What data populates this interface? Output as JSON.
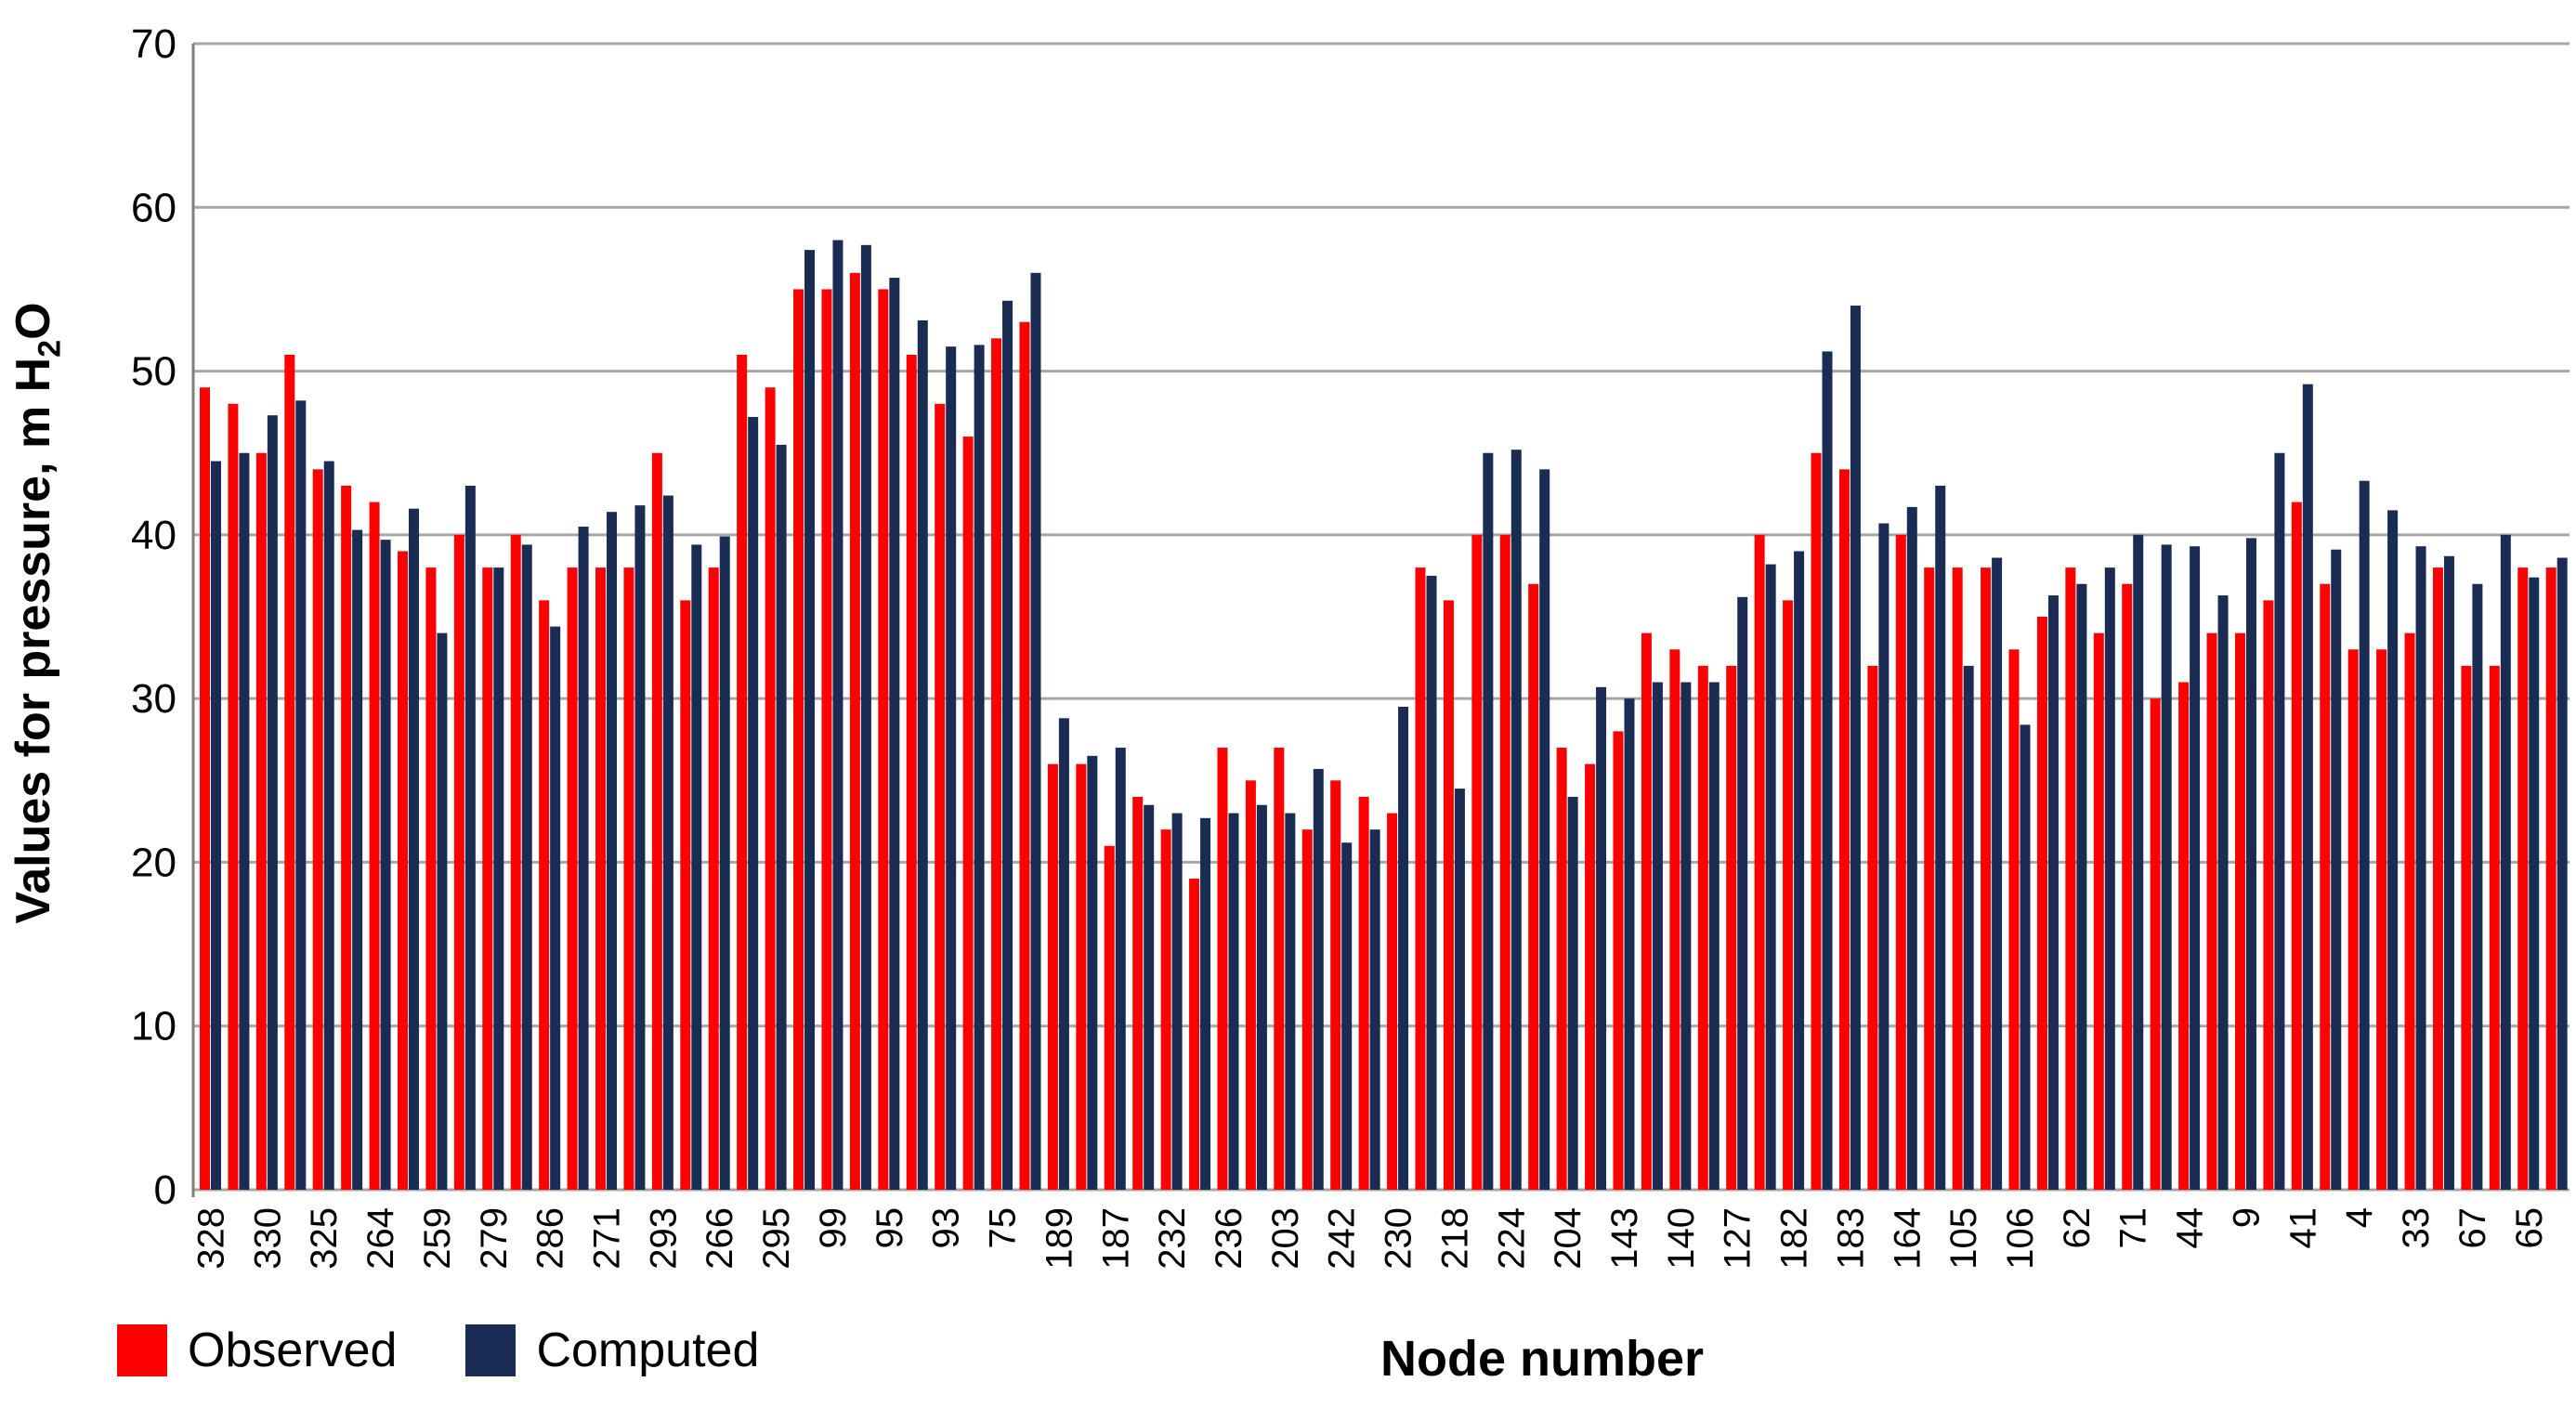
{
  "page": {
    "background": "#FFFFFF"
  },
  "chart_data": {
    "type": "bar",
    "title": "",
    "xlabel": "Node number",
    "ylabel": "Values for pressure, m H2O",
    "ylabel_parts": {
      "pre": "Values for pressure, m H",
      "sub": "2",
      "post": "O"
    },
    "ylim": [
      0,
      70
    ],
    "ytick_step": 10,
    "y_tick_labels": [
      "0",
      "10",
      "20",
      "30",
      "40",
      "50",
      "60",
      "70"
    ],
    "grid": true,
    "legend_position": "bottom-left",
    "x_tick_every": 2,
    "bar_pairs": 84,
    "x_tick_labels": [
      "328",
      "330",
      "325",
      "264",
      "259",
      "279",
      "286",
      "271",
      "293",
      "266",
      "295",
      "99",
      "95",
      "93",
      "75",
      "189",
      "187",
      "232",
      "236",
      "203",
      "242",
      "230",
      "218",
      "224",
      "204",
      "143",
      "140",
      "127",
      "182",
      "183",
      "164",
      "105",
      "106",
      "62",
      "71",
      "44",
      "9",
      "41",
      "4",
      "33",
      "67",
      "65"
    ],
    "series": [
      {
        "name": "Observed",
        "color": "#FF0000",
        "values": [
          49,
          48,
          45,
          51,
          44,
          43,
          42,
          39,
          38,
          40,
          38,
          40,
          36,
          38,
          38,
          38,
          45,
          36,
          38,
          51,
          49,
          55,
          55,
          56,
          55,
          51,
          48,
          46,
          52,
          53,
          26,
          26,
          21,
          24,
          22,
          19,
          27,
          25,
          27,
          22,
          25,
          24,
          23,
          38,
          36,
          40,
          40,
          37,
          27,
          26,
          28,
          34,
          33,
          32,
          32,
          40,
          36,
          45,
          44,
          32,
          40,
          38,
          38,
          38,
          33,
          35,
          38,
          34,
          37,
          30,
          31,
          34,
          34,
          36,
          42,
          37,
          33,
          33,
          34,
          38,
          32,
          32,
          38,
          38
        ]
      },
      {
        "name": "Computed",
        "color": "#1A2C54",
        "values": [
          44.5,
          45,
          47.3,
          48.2,
          44.5,
          40.3,
          39.7,
          41.6,
          34,
          43,
          38,
          39.4,
          34.4,
          40.5,
          41.4,
          41.8,
          42.4,
          39.4,
          39.9,
          47.2,
          45.5,
          57.4,
          58,
          57.7,
          55.7,
          53.1,
          51.5,
          51.6,
          54.3,
          56,
          28.8,
          26.5,
          27,
          23.5,
          23,
          22.7,
          23,
          23.5,
          23,
          25.7,
          21.2,
          22,
          29.5,
          37.5,
          24.5,
          45,
          45.2,
          44,
          24,
          30.7,
          30,
          31,
          31,
          31,
          36.2,
          38.2,
          39,
          51.2,
          54,
          40.7,
          41.7,
          43,
          32,
          38.6,
          28.4,
          36.3,
          37,
          38,
          40,
          39.4,
          39.3,
          36.3,
          39.8,
          45,
          49.2,
          39.1,
          43.3,
          41.5,
          39.3,
          38.7,
          37,
          40,
          37.4,
          38.6
        ]
      }
    ],
    "colors": {
      "gridline": "#A6A6A6",
      "axis": "#808080",
      "text": "#000000"
    }
  },
  "legend": {
    "items": [
      {
        "label": "Observed",
        "color": "#FF0000"
      },
      {
        "label": "Computed",
        "color": "#1A2C54"
      }
    ]
  }
}
